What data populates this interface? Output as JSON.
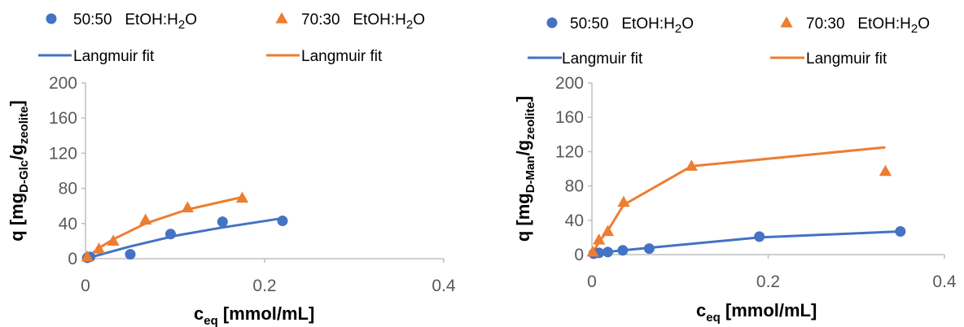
{
  "chart_data": [
    {
      "type": "scatter",
      "xlabel": {
        "main": "c",
        "sub": "eq",
        "rest": " [mmol/mL]"
      },
      "ylabel": {
        "a": "q [mg",
        "sub1": "D-Glc",
        "b": "/g",
        "sub2": "zeolite",
        "c": "]"
      },
      "xlim": [
        0,
        0.4
      ],
      "ylim": [
        0,
        200
      ],
      "x_ticks": [
        "0",
        "0.2",
        "0.4"
      ],
      "y_ticks": [
        "0",
        "40",
        "80",
        "120",
        "160",
        "200"
      ],
      "legend": [
        {
          "marker": "circle",
          "ratio": "50:50",
          "solvent": "EtOH:H",
          "sub": "2",
          "tail": "O"
        },
        {
          "marker": "triangle",
          "ratio": "70:30",
          "solvent": "EtOH:H",
          "sub": "2",
          "tail": "O"
        },
        {
          "marker": "line",
          "label": "Langmuir fit",
          "color": "#4472C4"
        },
        {
          "marker": "line",
          "label": "Langmuir fit",
          "color": "#ED7D31"
        }
      ],
      "series": [
        {
          "marker": "circle",
          "color": "#4472C4",
          "points": [
            [
              0.002,
              1
            ],
            [
              0.005,
              2
            ],
            [
              0.05,
              5
            ],
            [
              0.095,
              28
            ],
            [
              0.153,
              42
            ],
            [
              0.22,
              43
            ]
          ]
        },
        {
          "marker": "triangle",
          "color": "#ED7D31",
          "points": [
            [
              0.002,
              2
            ],
            [
              0.015,
              11
            ],
            [
              0.031,
              20
            ],
            [
              0.067,
              44
            ],
            [
              0.114,
              58
            ],
            [
              0.175,
              69
            ]
          ]
        }
      ],
      "fits": [
        {
          "color": "#4472C4",
          "points": [
            [
              0,
              0
            ],
            [
              0.05,
              14
            ],
            [
              0.1,
              26
            ],
            [
              0.15,
              35
            ],
            [
              0.22,
              46
            ]
          ]
        },
        {
          "color": "#ED7D31",
          "points": [
            [
              0,
              0
            ],
            [
              0.015,
              12
            ],
            [
              0.031,
              22
            ],
            [
              0.067,
              40
            ],
            [
              0.114,
              56
            ],
            [
              0.175,
              70
            ]
          ]
        }
      ]
    },
    {
      "type": "scatter",
      "xlabel": {
        "main": "c",
        "sub": "eq",
        "rest": " [mmol/mL]"
      },
      "ylabel": {
        "a": "q [mg",
        "sub1": "D-Man",
        "b": "/g",
        "sub2": "zeolite",
        "c": "]"
      },
      "xlim": [
        0,
        0.4
      ],
      "ylim": [
        0,
        200
      ],
      "x_ticks": [
        "0",
        "0.2",
        "0.4"
      ],
      "y_ticks": [
        "0",
        "40",
        "80",
        "120",
        "160",
        "200"
      ],
      "legend": [
        {
          "marker": "circle",
          "ratio": "50:50",
          "solvent": "EtOH:H",
          "sub": "2",
          "tail": "O"
        },
        {
          "marker": "triangle",
          "ratio": "70:30",
          "solvent": "EtOH:H",
          "sub": "2",
          "tail": "O"
        },
        {
          "marker": "line",
          "label": "Langmuir fit",
          "color": "#4472C4"
        },
        {
          "marker": "line",
          "label": "Langmuir fit",
          "color": "#ED7D31"
        }
      ],
      "series": [
        {
          "marker": "circle",
          "color": "#4472C4",
          "points": [
            [
              0.002,
              1
            ],
            [
              0.008,
              2
            ],
            [
              0.018,
              3
            ],
            [
              0.035,
              5
            ],
            [
              0.065,
              7
            ],
            [
              0.19,
              21
            ],
            [
              0.35,
              27
            ]
          ]
        },
        {
          "marker": "triangle",
          "color": "#ED7D31",
          "points": [
            [
              0.001,
              3
            ],
            [
              0.008,
              17
            ],
            [
              0.018,
              27
            ],
            [
              0.036,
              61
            ],
            [
              0.113,
              103
            ],
            [
              0.333,
              97
            ]
          ]
        }
      ],
      "fits": [
        {
          "color": "#4472C4",
          "points": [
            [
              0,
              0
            ],
            [
              0.018,
              3
            ],
            [
              0.035,
              5
            ],
            [
              0.065,
              8
            ],
            [
              0.19,
              20
            ],
            [
              0.35,
              27
            ]
          ]
        },
        {
          "color": "#ED7D31",
          "points": [
            [
              0,
              0
            ],
            [
              0.008,
              15
            ],
            [
              0.018,
              28
            ],
            [
              0.036,
              58
            ],
            [
              0.113,
              103
            ],
            [
              0.333,
              125
            ]
          ]
        }
      ]
    }
  ]
}
